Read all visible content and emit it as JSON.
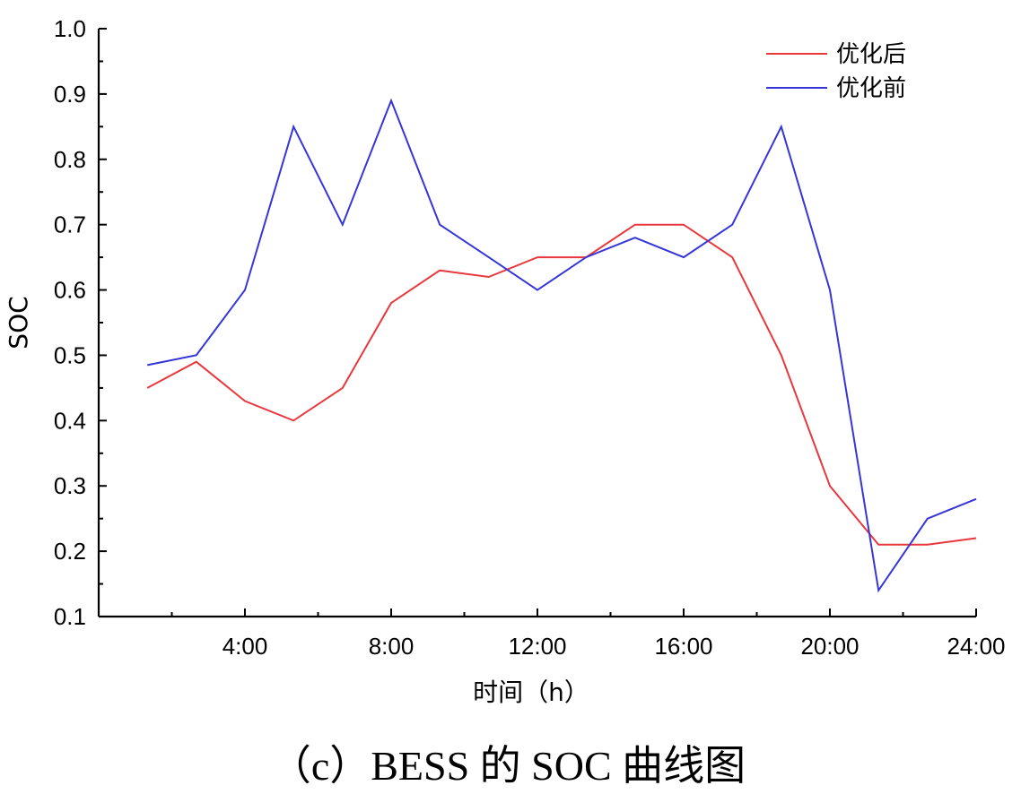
{
  "chart_data": {
    "type": "line",
    "title": "",
    "caption": "（c）BESS 的 SOC 曲线图",
    "xlabel": "时间（h）",
    "ylabel": "SOC",
    "xlim": [
      0,
      24
    ],
    "ylim": [
      0.1,
      1.0
    ],
    "xticks": [
      {
        "value": 4,
        "label": "4:00"
      },
      {
        "value": 8,
        "label": "8:00"
      },
      {
        "value": 12,
        "label": "12:00"
      },
      {
        "value": 16,
        "label": "16:00"
      },
      {
        "value": 20,
        "label": "20:00"
      },
      {
        "value": 24,
        "label": "24:00"
      }
    ],
    "yticks": [
      "0.1",
      "0.2",
      "0.3",
      "0.4",
      "0.5",
      "0.6",
      "0.7",
      "0.8",
      "0.9",
      "1.0"
    ],
    "grid": false,
    "legend_position": "top-right",
    "x": [
      1.33,
      2.67,
      4.0,
      5.33,
      6.67,
      8.0,
      9.33,
      10.67,
      12.0,
      13.33,
      14.67,
      16.0,
      17.33,
      18.67,
      20.0,
      21.33,
      22.67,
      24.0
    ],
    "series": [
      {
        "name": "优化后",
        "color": "#e8383d",
        "values": [
          0.45,
          0.49,
          0.43,
          0.4,
          0.45,
          0.58,
          0.63,
          0.62,
          0.65,
          0.65,
          0.7,
          0.7,
          0.65,
          0.5,
          0.3,
          0.21,
          0.21,
          0.22
        ]
      },
      {
        "name": "优化前",
        "color": "#3535d8",
        "values": [
          0.485,
          0.5,
          0.6,
          0.85,
          0.7,
          0.89,
          0.7,
          0.65,
          0.6,
          0.65,
          0.68,
          0.65,
          0.7,
          0.85,
          0.6,
          0.14,
          0.25,
          0.28
        ]
      }
    ]
  }
}
